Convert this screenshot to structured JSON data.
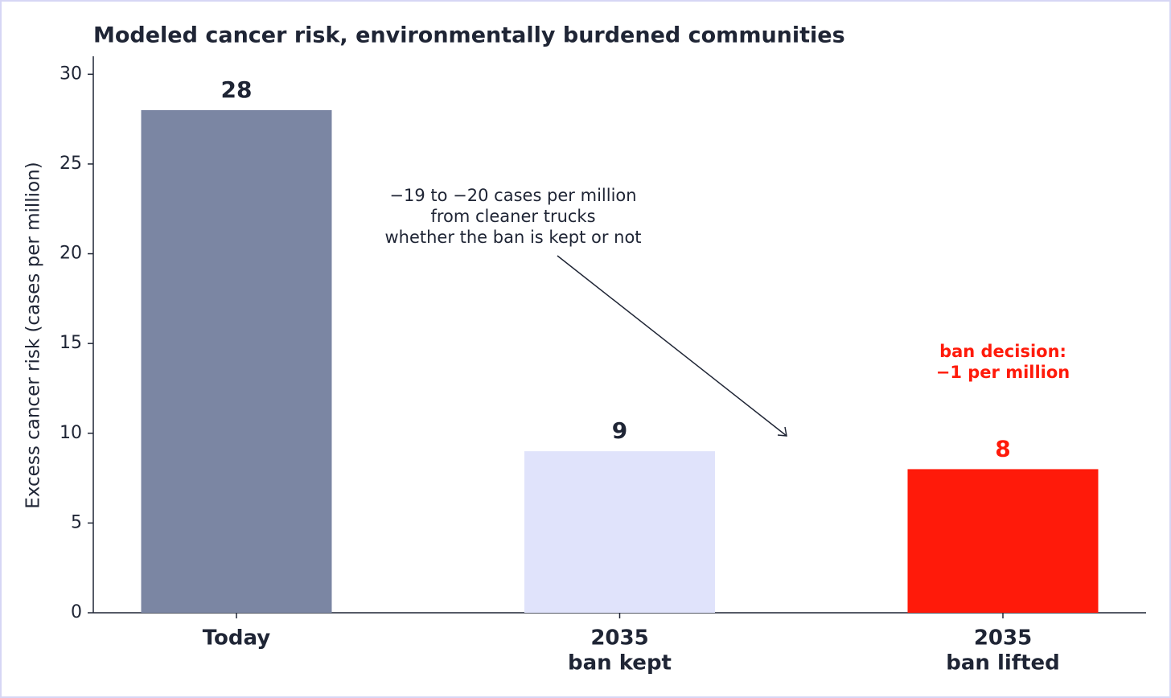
{
  "chart_data": {
    "type": "bar",
    "title": "Modeled cancer risk, environmentally burdened communities",
    "y_label": "Excess cancer risk (cases per million)",
    "categories": [
      [
        "Today"
      ],
      [
        "2035",
        "ban kept"
      ],
      [
        "2035",
        "ban lifted"
      ]
    ],
    "values": [
      28,
      9,
      8
    ],
    "colors": [
      "#7b86a3",
      "#e0e3fb",
      "#ff1a0a"
    ],
    "value_label_colors": [
      "#1f2535",
      "#1f2535",
      "#ff1a0a"
    ],
    "ylim": [
      0,
      31
    ],
    "yticks": [
      0,
      5,
      10,
      15,
      20,
      25,
      30
    ],
    "annotations": [
      {
        "lines": [
          "−19 to −20 cases per million",
          "from cleaner trucks",
          "whether the ban is kept or not"
        ],
        "color": "#1f2535"
      },
      {
        "lines": [
          "ban decision:",
          "−1 per million"
        ],
        "color": "#ff1a0a"
      }
    ]
  }
}
